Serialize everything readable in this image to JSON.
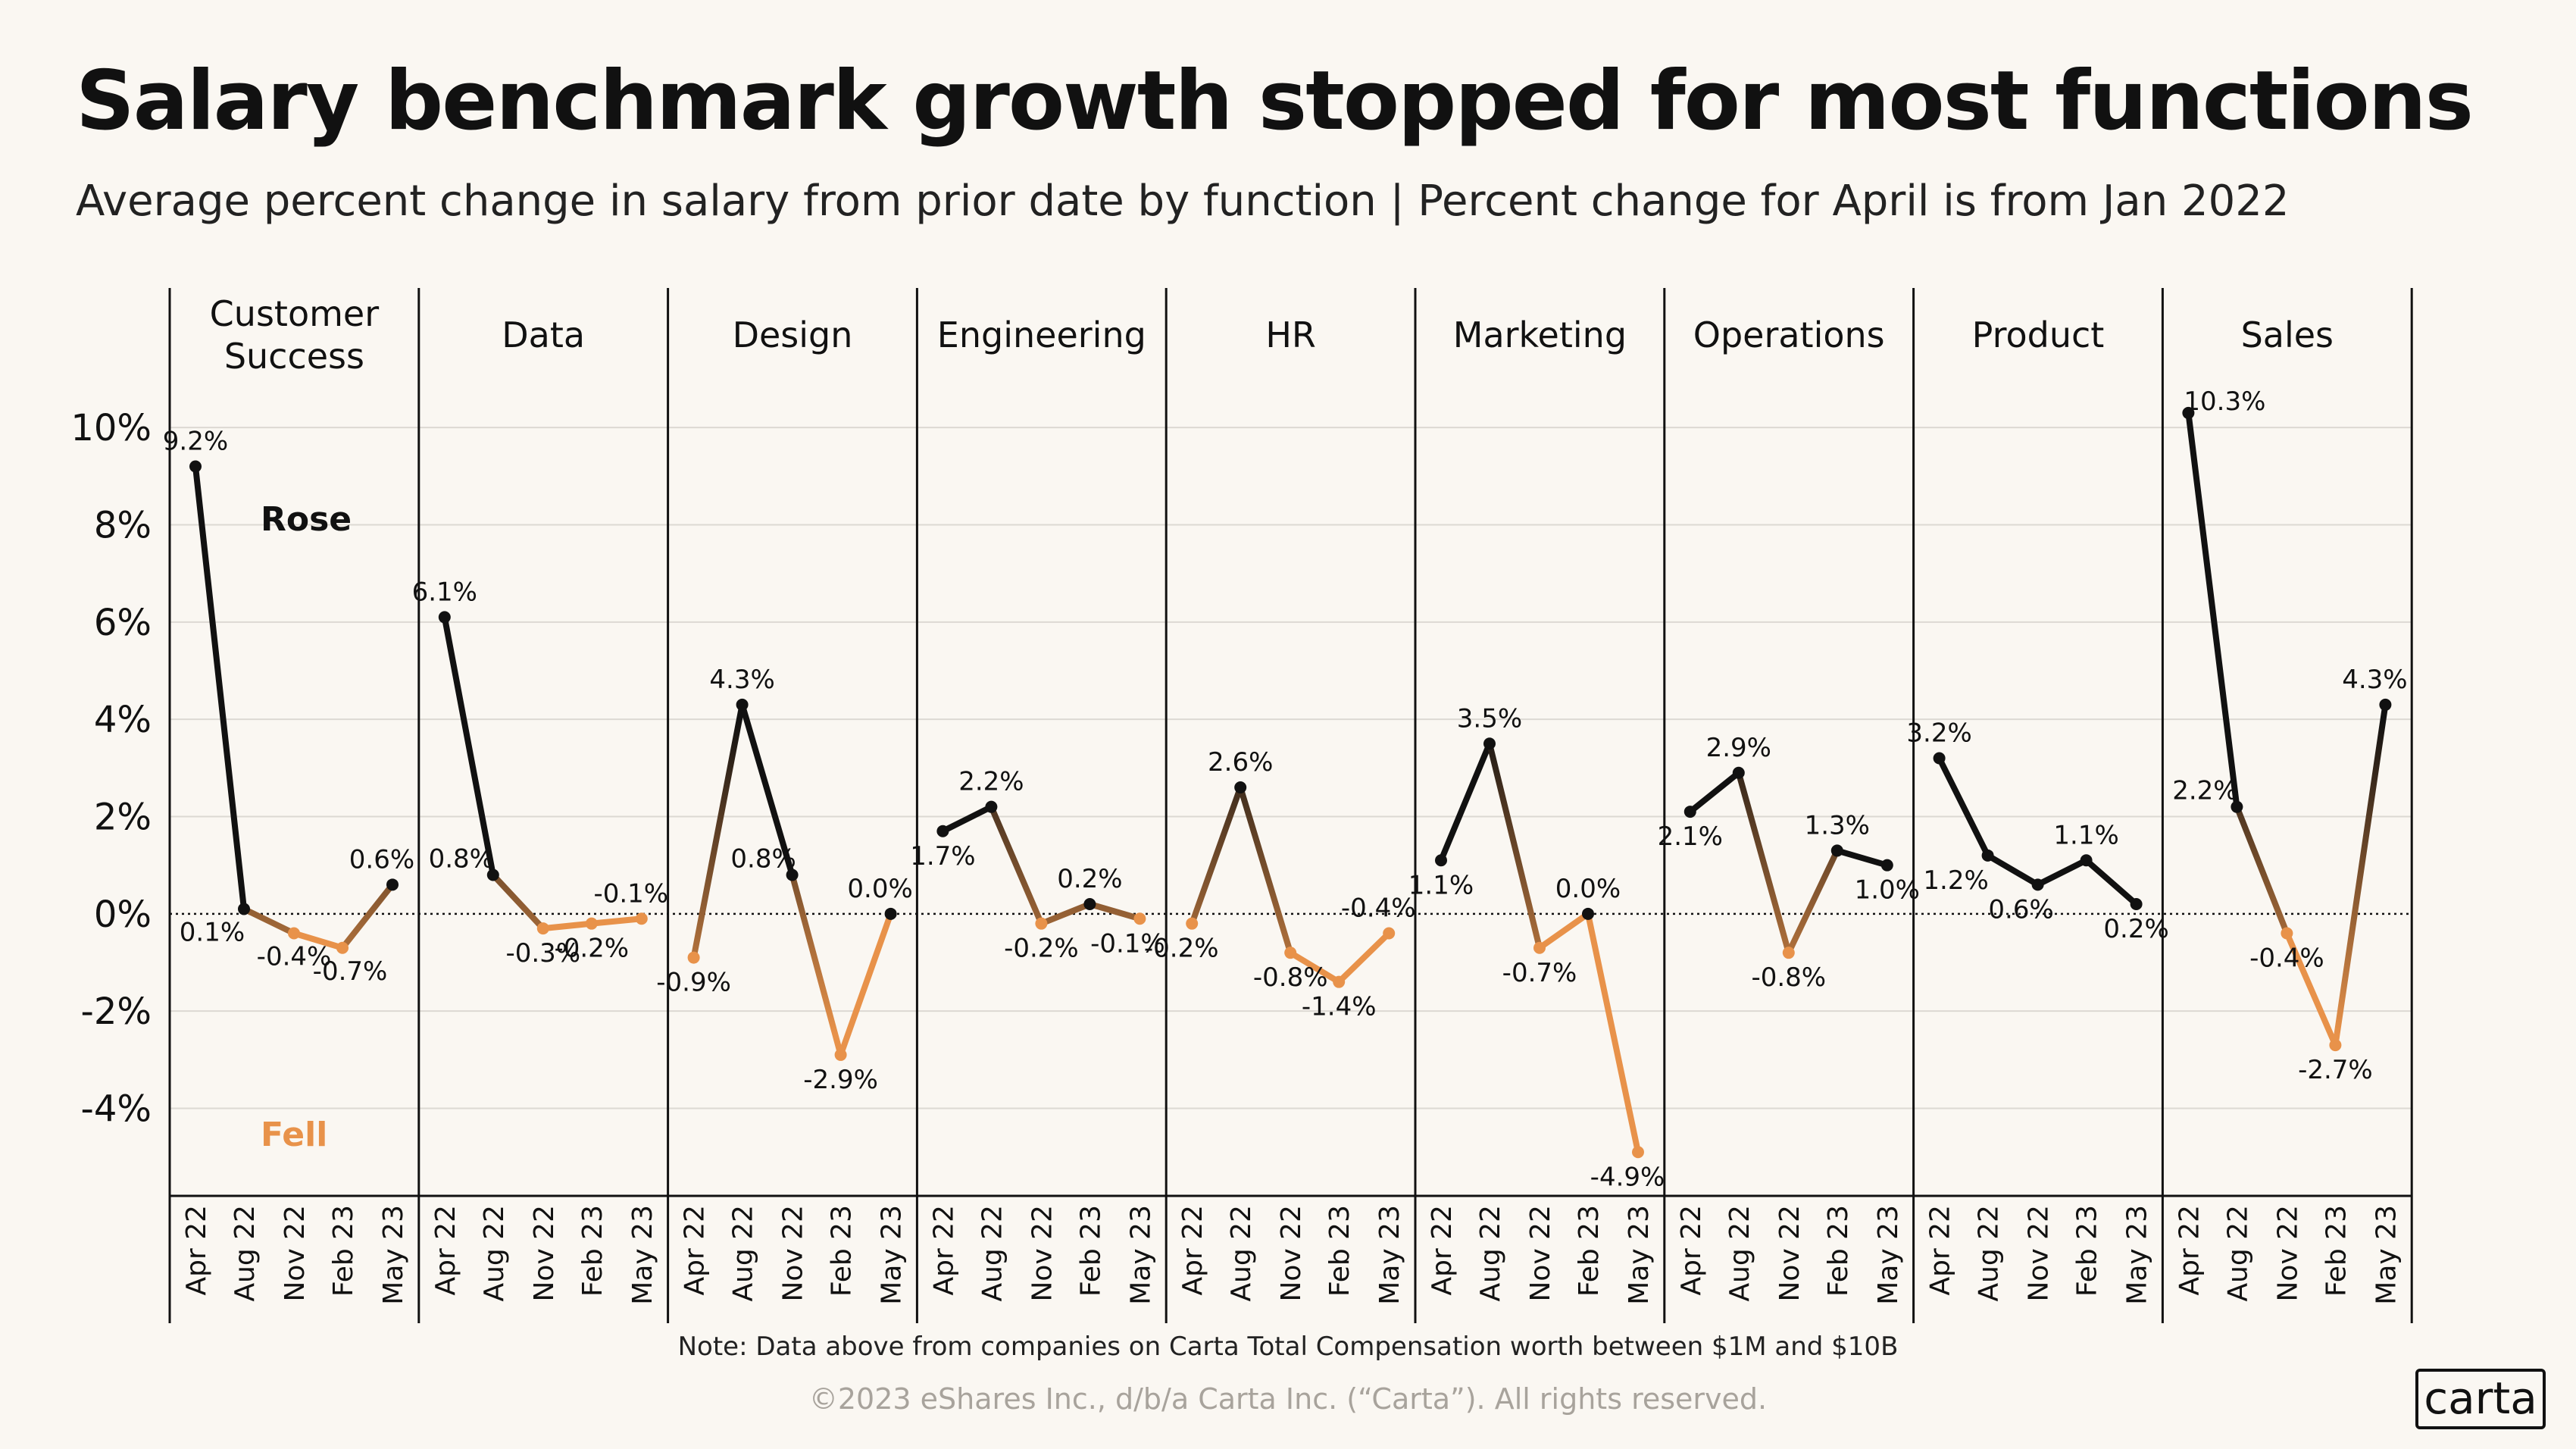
{
  "title": "Salary benchmark growth stopped for most functions",
  "subtitle": "Average percent change in salary from prior date by function | Percent change for April is from Jan 2022",
  "note": "Note:  Data above from companies on Carta Total Compensation worth between $1M and $10B",
  "copyright": "©2023 eShares Inc., d/b/a Carta Inc. (“Carta”). All rights reserved.",
  "logo": "carta",
  "colors": {
    "rose": "#111111",
    "fell": "#e8924a",
    "grid": "#dcd9d3",
    "background": "#faf7f2"
  },
  "chart_data": {
    "type": "line",
    "categories": [
      "Apr 22",
      "Aug 22",
      "Nov 22",
      "Feb 23",
      "May 23"
    ],
    "ylim": [
      -5.8,
      11.0
    ],
    "yticks": [
      10,
      8,
      6,
      4,
      2,
      0,
      -2,
      -4
    ],
    "ytick_labels": [
      "10%",
      "8%",
      "6%",
      "4%",
      "2%",
      "0%",
      "-2%",
      "-4%"
    ],
    "legend": {
      "rose": "Rose",
      "fell": "Fell"
    },
    "series": [
      {
        "name": "Customer Success",
        "title_lines": [
          "Customer",
          "Success"
        ],
        "values": [
          9.2,
          0.1,
          -0.4,
          -0.7,
          0.6
        ],
        "labels": [
          "9.2%",
          "0.1%",
          "-0.4%",
          "-0.7%",
          "0.6%"
        ]
      },
      {
        "name": "Data",
        "title_lines": [
          "Data"
        ],
        "values": [
          6.1,
          0.8,
          -0.3,
          -0.2,
          -0.1
        ],
        "labels": [
          "6.1%",
          "0.8%",
          "-0.3%",
          "-0.2%",
          "-0.1%"
        ]
      },
      {
        "name": "Design",
        "title_lines": [
          "Design"
        ],
        "values": [
          -0.9,
          4.3,
          0.8,
          -2.9,
          0.0
        ],
        "labels": [
          "-0.9%",
          "4.3%",
          "0.8%",
          "-2.9%",
          "0.0%"
        ]
      },
      {
        "name": "Engineering",
        "title_lines": [
          "Engineering"
        ],
        "values": [
          1.7,
          2.2,
          -0.2,
          0.2,
          -0.1
        ],
        "labels": [
          "1.7%",
          "2.2%",
          "-0.2%",
          "0.2%",
          "-0.1%"
        ]
      },
      {
        "name": "HR",
        "title_lines": [
          "HR"
        ],
        "values": [
          -0.2,
          2.6,
          -0.8,
          -1.4,
          -0.4
        ],
        "labels": [
          "-0.2%",
          "2.6%",
          "-0.8%",
          "-1.4%",
          "-0.4%"
        ]
      },
      {
        "name": "Marketing",
        "title_lines": [
          "Marketing"
        ],
        "values": [
          1.1,
          3.5,
          -0.7,
          0.0,
          -4.9
        ],
        "labels": [
          "1.1%",
          "3.5%",
          "-0.7%",
          "0.0%",
          "-4.9%"
        ]
      },
      {
        "name": "Operations",
        "title_lines": [
          "Operations"
        ],
        "values": [
          2.1,
          2.9,
          -0.8,
          1.3,
          1.0
        ],
        "labels": [
          "2.1%",
          "2.9%",
          "-0.8%",
          "1.3%",
          "1.0%"
        ]
      },
      {
        "name": "Product",
        "title_lines": [
          "Product"
        ],
        "values": [
          3.2,
          1.2,
          0.6,
          1.1,
          0.2
        ],
        "labels": [
          "3.2%",
          "1.2%",
          "0.6%",
          "1.1%",
          "0.2%"
        ]
      },
      {
        "name": "Sales",
        "title_lines": [
          "Sales"
        ],
        "values": [
          10.3,
          2.2,
          -0.4,
          -2.7,
          4.3
        ],
        "labels": [
          "10.3%",
          "2.2%",
          "-0.4%",
          "-2.7%",
          "4.3%"
        ]
      }
    ]
  }
}
